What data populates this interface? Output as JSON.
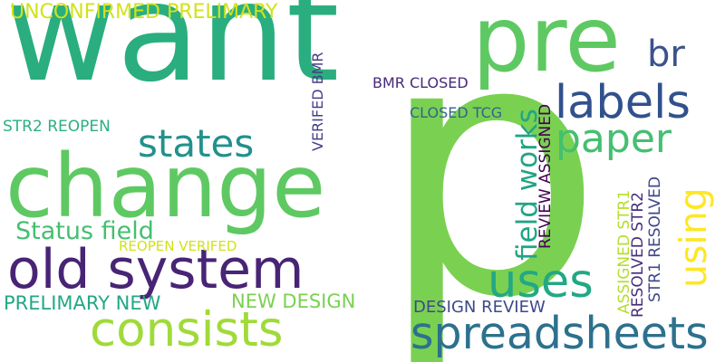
{
  "word_cloud": {
    "words": [
      {
        "text": "want",
        "color": "#2aae7f",
        "orientation": "horizontal"
      },
      {
        "text": "p",
        "color": "#7ad151",
        "orientation": "horizontal"
      },
      {
        "text": "change",
        "color": "#5ec962",
        "orientation": "horizontal"
      },
      {
        "text": "pre",
        "color": "#5ec962",
        "orientation": "horizontal"
      },
      {
        "text": "old system",
        "color": "#482475",
        "orientation": "horizontal"
      },
      {
        "text": "spreadsheets",
        "color": "#2c718e",
        "orientation": "horizontal"
      },
      {
        "text": "consists",
        "color": "#a0da39",
        "orientation": "horizontal"
      },
      {
        "text": "labels",
        "color": "#31518d",
        "orientation": "horizontal"
      },
      {
        "text": "uses",
        "color": "#22a884",
        "orientation": "horizontal"
      },
      {
        "text": "paper",
        "color": "#44bf70",
        "orientation": "horizontal"
      },
      {
        "text": "states",
        "color": "#21918c",
        "orientation": "horizontal"
      },
      {
        "text": "using",
        "color": "#fde725",
        "orientation": "vertical"
      },
      {
        "text": "br",
        "color": "#3b528b",
        "orientation": "horizontal"
      },
      {
        "text": "field works",
        "color": "#21a585",
        "orientation": "vertical"
      },
      {
        "text": "Status field",
        "color": "#44bf70",
        "orientation": "horizontal"
      },
      {
        "text": "UNCONFIRMED PRELIMARY",
        "color": "#d2e21b",
        "orientation": "horizontal"
      },
      {
        "text": "PRELIMARY NEW",
        "color": "#22a884",
        "orientation": "horizontal"
      },
      {
        "text": "NEW DESIGN",
        "color": "#7ad151",
        "orientation": "horizontal"
      },
      {
        "text": "DESIGN REVIEW",
        "color": "#3e4989",
        "orientation": "horizontal"
      },
      {
        "text": "STR2 REOPEN",
        "color": "#2ab07f",
        "orientation": "horizontal"
      },
      {
        "text": "BMR CLOSED",
        "color": "#482878",
        "orientation": "horizontal"
      },
      {
        "text": "CLOSED TCG",
        "color": "#33638d",
        "orientation": "horizontal"
      },
      {
        "text": "REOPEN VERIFED",
        "color": "#d2e21b",
        "orientation": "horizontal"
      },
      {
        "text": "VERIFED BMR",
        "color": "#433e85",
        "orientation": "vertical"
      },
      {
        "text": "REVIEW ASSIGNED",
        "color": "#440154",
        "orientation": "vertical"
      },
      {
        "text": "ASSIGNED STR1",
        "color": "#b5de2b",
        "orientation": "vertical"
      },
      {
        "text": "RESOLVED STR2",
        "color": "#472f7d",
        "orientation": "vertical"
      },
      {
        "text": "STR1 RESOLVED",
        "color": "#3f4788",
        "orientation": "vertical"
      }
    ]
  }
}
